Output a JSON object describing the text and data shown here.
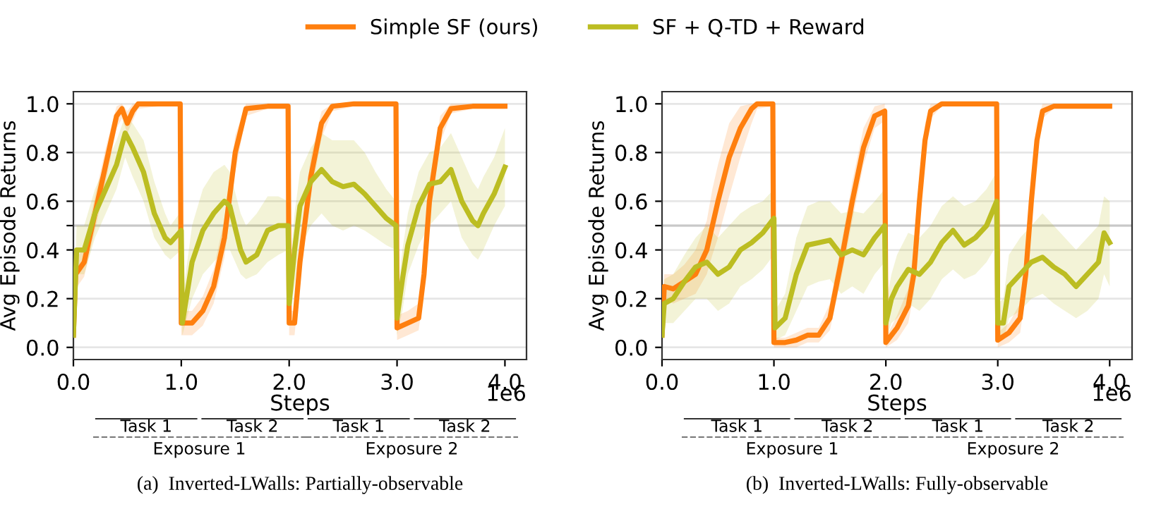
{
  "chart_data": [
    {
      "type": "line",
      "title": "(a)  Inverted-LWalls: Partially-observable",
      "xlabel": "Steps",
      "ylabel": "Avg Episode Returns",
      "xlim": [
        0,
        4.2
      ],
      "ylim": [
        -0.05,
        1.05
      ],
      "xticks": [
        {
          "value": 0,
          "label": "0.0"
        },
        {
          "value": 1,
          "label": "1.0"
        },
        {
          "value": 2,
          "label": "2.0"
        },
        {
          "value": 3,
          "label": "3.0"
        },
        {
          "value": 4,
          "label": "4.0"
        }
      ],
      "yticks": [
        {
          "value": 0,
          "label": "0.0"
        },
        0.2,
        0.4,
        {
          "value": 0.5,
          "label": null
        },
        0.6,
        0.8,
        {
          "value": 1,
          "label": "1.0"
        }
      ],
      "grid": "y",
      "legend": "top",
      "marker": "none",
      "line_style": "solid",
      "ref_lines": [
        {
          "axis": "y",
          "value": 0.5,
          "color": "#c8c8c8"
        }
      ],
      "annotations": [
        "Task 1",
        "Task 2",
        "Task 1",
        "Task 2",
        "Exposure 1",
        "Exposure 2",
        "1e6"
      ],
      "series": [
        {
          "name": "Simple SF (ours)",
          "color": "#ff7f0e",
          "x": [
            0,
            0.02,
            0.1,
            0.2,
            0.3,
            0.4,
            0.45,
            0.5,
            0.55,
            0.6,
            0.8,
            0.99,
            1.0,
            1.1,
            1.2,
            1.3,
            1.4,
            1.5,
            1.6,
            1.8,
            1.99,
            2.0,
            2.05,
            2.1,
            2.2,
            2.3,
            2.4,
            2.6,
            2.99,
            3.0,
            3.1,
            3.2,
            3.25,
            3.3,
            3.4,
            3.5,
            3.7,
            4.0
          ],
          "values": [
            0.05,
            0.3,
            0.35,
            0.55,
            0.75,
            0.95,
            0.98,
            0.92,
            0.97,
            1.0,
            1.0,
            1.0,
            0.1,
            0.1,
            0.15,
            0.25,
            0.45,
            0.8,
            0.98,
            0.99,
            0.99,
            0.1,
            0.1,
            0.35,
            0.7,
            0.92,
            0.99,
            1.0,
            1.0,
            0.08,
            0.1,
            0.12,
            0.3,
            0.6,
            0.9,
            0.98,
            0.99,
            0.99
          ],
          "lower": [
            0.02,
            0.24,
            0.29,
            0.48,
            0.68,
            0.9,
            0.94,
            0.88,
            0.93,
            0.98,
            0.99,
            0.99,
            0.05,
            0.05,
            0.09,
            0.18,
            0.37,
            0.72,
            0.95,
            0.98,
            0.98,
            0.05,
            0.05,
            0.28,
            0.62,
            0.86,
            0.97,
            0.99,
            0.99,
            0.03,
            0.05,
            0.07,
            0.23,
            0.52,
            0.84,
            0.96,
            0.98,
            0.98
          ],
          "upper": [
            0.08,
            0.36,
            0.41,
            0.62,
            0.82,
            0.99,
            1.0,
            0.97,
            1.0,
            1.0,
            1.0,
            1.0,
            0.15,
            0.15,
            0.21,
            0.32,
            0.53,
            0.87,
            1.0,
            1.0,
            1.0,
            0.15,
            0.15,
            0.42,
            0.78,
            0.97,
            1.0,
            1.0,
            1.0,
            0.13,
            0.15,
            0.18,
            0.37,
            0.68,
            0.95,
            1.0,
            1.0,
            1.0
          ]
        },
        {
          "name": "SF + Q-TD + Reward",
          "color": "#bcbd22",
          "x": [
            0,
            0.03,
            0.1,
            0.2,
            0.3,
            0.4,
            0.48,
            0.55,
            0.65,
            0.75,
            0.85,
            0.9,
            1.0,
            1.01,
            1.1,
            1.2,
            1.3,
            1.4,
            1.45,
            1.55,
            1.6,
            1.7,
            1.8,
            1.9,
            1.99,
            2.0,
            2.05,
            2.1,
            2.2,
            2.3,
            2.4,
            2.5,
            2.6,
            2.7,
            2.8,
            2.9,
            2.99,
            3.0,
            3.05,
            3.1,
            3.2,
            3.3,
            3.4,
            3.5,
            3.6,
            3.7,
            3.75,
            3.8,
            3.9,
            4.0
          ],
          "values": [
            0.05,
            0.4,
            0.4,
            0.55,
            0.65,
            0.75,
            0.88,
            0.82,
            0.72,
            0.55,
            0.45,
            0.43,
            0.48,
            0.1,
            0.35,
            0.48,
            0.55,
            0.6,
            0.58,
            0.4,
            0.35,
            0.38,
            0.48,
            0.5,
            0.5,
            0.18,
            0.4,
            0.58,
            0.68,
            0.73,
            0.68,
            0.66,
            0.67,
            0.63,
            0.58,
            0.53,
            0.5,
            0.12,
            0.28,
            0.42,
            0.58,
            0.67,
            0.68,
            0.73,
            0.6,
            0.52,
            0.5,
            0.55,
            0.63,
            0.74
          ],
          "lower": [
            0.0,
            0.3,
            0.3,
            0.45,
            0.55,
            0.65,
            0.78,
            0.7,
            0.6,
            0.45,
            0.38,
            0.36,
            0.4,
            0.05,
            0.2,
            0.3,
            0.35,
            0.4,
            0.4,
            0.3,
            0.28,
            0.3,
            0.35,
            0.38,
            0.4,
            0.1,
            0.25,
            0.4,
            0.5,
            0.55,
            0.5,
            0.48,
            0.5,
            0.48,
            0.45,
            0.42,
            0.4,
            0.05,
            0.15,
            0.3,
            0.42,
            0.5,
            0.55,
            0.6,
            0.45,
            0.38,
            0.36,
            0.4,
            0.5,
            0.58
          ],
          "upper": [
            0.1,
            0.5,
            0.5,
            0.65,
            0.75,
            0.85,
            0.95,
            0.92,
            0.85,
            0.68,
            0.55,
            0.5,
            0.56,
            0.2,
            0.5,
            0.65,
            0.72,
            0.75,
            0.72,
            0.55,
            0.5,
            0.55,
            0.62,
            0.62,
            0.6,
            0.3,
            0.55,
            0.72,
            0.82,
            0.88,
            0.85,
            0.85,
            0.85,
            0.8,
            0.72,
            0.65,
            0.6,
            0.2,
            0.4,
            0.55,
            0.72,
            0.8,
            0.82,
            0.88,
            0.78,
            0.68,
            0.65,
            0.7,
            0.78,
            0.9
          ]
        }
      ]
    },
    {
      "type": "line",
      "title": "(b)  Inverted-LWalls: Fully-observable",
      "xlabel": "Steps",
      "ylabel": "Avg Episode Returns",
      "xlim": [
        0,
        4.2
      ],
      "ylim": [
        -0.05,
        1.05
      ],
      "xticks": [
        {
          "value": 0,
          "label": "0.0"
        },
        {
          "value": 1,
          "label": "1.0"
        },
        {
          "value": 2,
          "label": "2.0"
        },
        {
          "value": 3,
          "label": "3.0"
        },
        {
          "value": 4,
          "label": "4.0"
        }
      ],
      "yticks": [
        {
          "value": 0,
          "label": "0.0"
        },
        0.2,
        0.4,
        {
          "value": 0.5,
          "label": null
        },
        0.6,
        0.8,
        {
          "value": 1,
          "label": "1.0"
        }
      ],
      "grid": "y",
      "marker": "none",
      "line_style": "solid",
      "ref_lines": [
        {
          "axis": "y",
          "value": 0.5,
          "color": "#c8c8c8"
        }
      ],
      "annotations": [
        "Task 1",
        "Task 2",
        "Task 1",
        "Task 2",
        "Exposure 1",
        "Exposure 2",
        "1e6"
      ],
      "series": [
        {
          "color": "#ff7f0e",
          "x": [
            0,
            0.02,
            0.1,
            0.2,
            0.3,
            0.4,
            0.45,
            0.5,
            0.6,
            0.7,
            0.8,
            0.85,
            0.99,
            1.0,
            1.1,
            1.2,
            1.3,
            1.4,
            1.5,
            1.6,
            1.7,
            1.8,
            1.9,
            1.99,
            2.0,
            2.1,
            2.2,
            2.25,
            2.3,
            2.35,
            2.4,
            2.5,
            2.99,
            3.0,
            3.1,
            3.2,
            3.25,
            3.3,
            3.35,
            3.4,
            3.5,
            4.0
          ],
          "values": [
            0.05,
            0.25,
            0.24,
            0.27,
            0.3,
            0.4,
            0.5,
            0.6,
            0.78,
            0.9,
            0.98,
            1.0,
            1.0,
            0.02,
            0.02,
            0.03,
            0.05,
            0.05,
            0.12,
            0.35,
            0.6,
            0.82,
            0.95,
            0.97,
            0.02,
            0.08,
            0.17,
            0.3,
            0.6,
            0.85,
            0.97,
            1.0,
            1.0,
            0.03,
            0.06,
            0.12,
            0.3,
            0.6,
            0.85,
            0.97,
            0.99,
            0.99
          ],
          "lower": [
            0.02,
            0.2,
            0.18,
            0.2,
            0.22,
            0.3,
            0.38,
            0.45,
            0.62,
            0.78,
            0.92,
            0.98,
            0.99,
            0.0,
            0.0,
            0.0,
            0.02,
            0.02,
            0.07,
            0.28,
            0.52,
            0.75,
            0.9,
            0.93,
            0.0,
            0.03,
            0.1,
            0.22,
            0.5,
            0.78,
            0.94,
            0.99,
            0.99,
            0.0,
            0.02,
            0.06,
            0.22,
            0.5,
            0.78,
            0.94,
            0.98,
            0.98
          ],
          "upper": [
            0.08,
            0.3,
            0.3,
            0.34,
            0.4,
            0.52,
            0.65,
            0.75,
            0.92,
            0.99,
            1.0,
            1.0,
            1.0,
            0.04,
            0.04,
            0.06,
            0.08,
            0.08,
            0.18,
            0.42,
            0.68,
            0.9,
            0.99,
            1.0,
            0.04,
            0.13,
            0.24,
            0.4,
            0.7,
            0.92,
            1.0,
            1.0,
            1.0,
            0.06,
            0.1,
            0.18,
            0.4,
            0.7,
            0.92,
            1.0,
            1.0,
            1.0
          ]
        },
        {
          "color": "#bcbd22",
          "x": [
            0,
            0.02,
            0.1,
            0.2,
            0.3,
            0.4,
            0.5,
            0.6,
            0.7,
            0.8,
            0.9,
            1.0,
            1.01,
            1.1,
            1.2,
            1.3,
            1.4,
            1.5,
            1.6,
            1.7,
            1.8,
            1.9,
            1.99,
            2.0,
            2.05,
            2.1,
            2.2,
            2.3,
            2.4,
            2.5,
            2.6,
            2.7,
            2.8,
            2.9,
            2.99,
            3.0,
            3.05,
            3.1,
            3.2,
            3.3,
            3.4,
            3.5,
            3.6,
            3.7,
            3.8,
            3.9,
            3.95,
            4.0
          ],
          "values": [
            0.05,
            0.18,
            0.2,
            0.27,
            0.33,
            0.35,
            0.3,
            0.33,
            0.4,
            0.43,
            0.47,
            0.53,
            0.08,
            0.12,
            0.3,
            0.42,
            0.43,
            0.44,
            0.38,
            0.4,
            0.38,
            0.45,
            0.5,
            0.1,
            0.2,
            0.25,
            0.32,
            0.3,
            0.35,
            0.43,
            0.48,
            0.42,
            0.45,
            0.5,
            0.6,
            0.1,
            0.1,
            0.25,
            0.3,
            0.35,
            0.37,
            0.33,
            0.3,
            0.25,
            0.3,
            0.35,
            0.47,
            0.43
          ],
          "lower": [
            0.0,
            0.1,
            0.1,
            0.15,
            0.2,
            0.2,
            0.15,
            0.18,
            0.25,
            0.28,
            0.32,
            0.38,
            0.03,
            0.05,
            0.15,
            0.25,
            0.27,
            0.28,
            0.22,
            0.25,
            0.22,
            0.3,
            0.35,
            0.03,
            0.1,
            0.12,
            0.18,
            0.15,
            0.2,
            0.28,
            0.32,
            0.28,
            0.3,
            0.35,
            0.42,
            0.03,
            0.03,
            0.12,
            0.15,
            0.2,
            0.22,
            0.18,
            0.15,
            0.12,
            0.15,
            0.2,
            0.3,
            0.25
          ],
          "upper": [
            0.1,
            0.28,
            0.3,
            0.38,
            0.45,
            0.5,
            0.45,
            0.5,
            0.55,
            0.58,
            0.6,
            0.65,
            0.15,
            0.22,
            0.45,
            0.58,
            0.6,
            0.6,
            0.55,
            0.56,
            0.55,
            0.6,
            0.65,
            0.18,
            0.3,
            0.38,
            0.47,
            0.45,
            0.5,
            0.58,
            0.62,
            0.58,
            0.6,
            0.65,
            0.72,
            0.18,
            0.2,
            0.38,
            0.45,
            0.5,
            0.55,
            0.5,
            0.45,
            0.4,
            0.45,
            0.5,
            0.62,
            0.6
          ]
        }
      ]
    }
  ]
}
